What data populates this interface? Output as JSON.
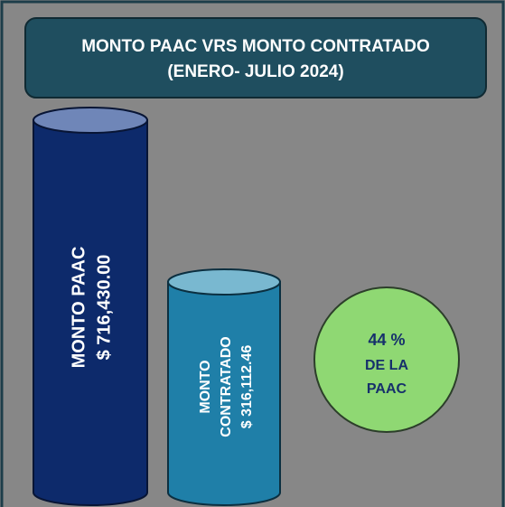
{
  "header": {
    "title_lines": [
      "MONTO PAAC VRS MONTO CONTRATADO",
      "(ENERO- JULIO 2024)"
    ]
  },
  "cylinders": [
    {
      "lines": [
        "MONTO  PAAC",
        "$ 716,430.00"
      ]
    },
    {
      "lines": [
        "MONTO",
        "CONTRATADO",
        "$ 316,112.46"
      ]
    }
  ],
  "badge": {
    "lines": [
      "44 %",
      "DE LA",
      "PAAC"
    ]
  }
}
